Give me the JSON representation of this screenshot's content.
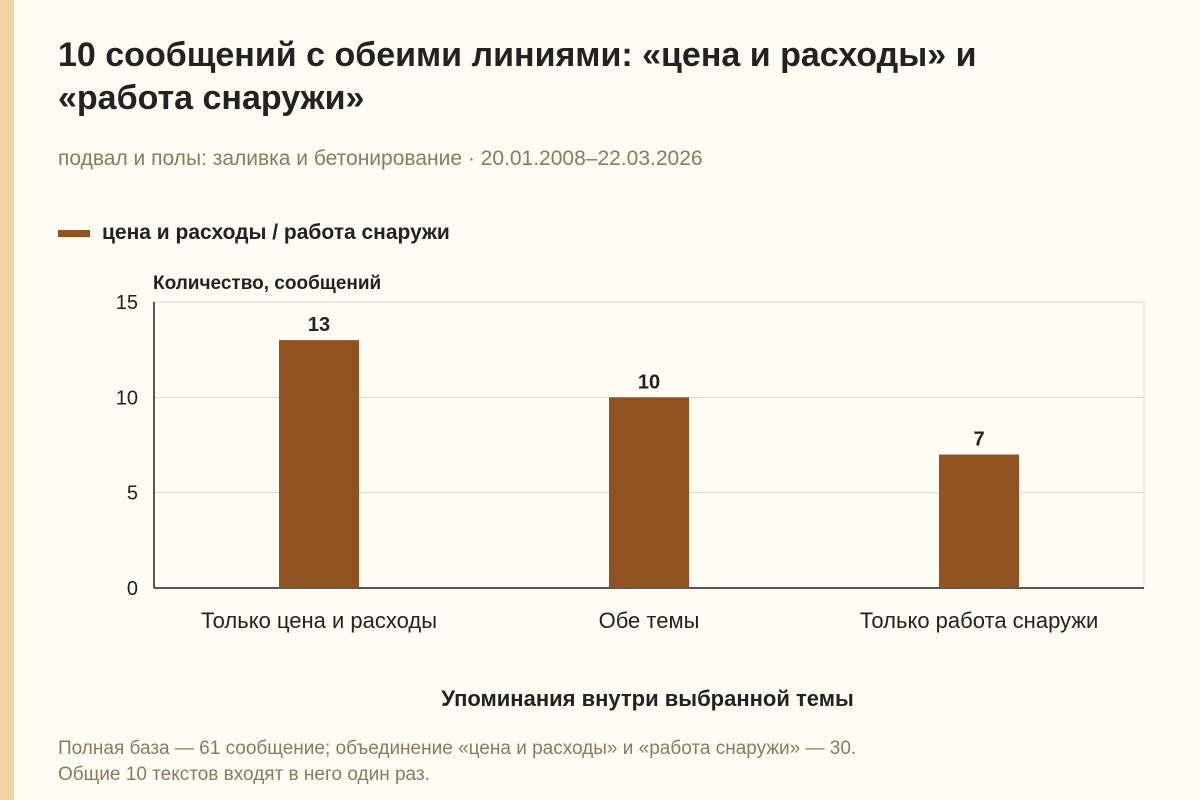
{
  "title": "10 сообщений с обеими линиями: «цена и расходы» и «работа снаружи»",
  "subtitle": "подвал и полы: заливка и бетонирование · 20.01.2008–22.03.2026",
  "legend_label": "цена и расходы / работа снаружи",
  "footnote": {
    "line1": "Полная база — 61 сообщение; объединение «цена и расходы» и «работа снаружи» — 30.",
    "line2": "Общие 10 текстов входят в него один раз."
  },
  "colors": {
    "bar": "#8f5220",
    "background": "#fffcf3",
    "accent_strip": "#f4d2a6",
    "muted_text": "#8a7a60",
    "grid": "#dcd8cc"
  },
  "chart_data": {
    "type": "bar",
    "title": "10 сообщений с обеими линиями: «цена и расходы» и «работа снаружи»",
    "subtitle": "подвал и полы: заливка и бетонирование · 20.01.2008–22.03.2026",
    "categories": [
      "Только цена и расходы",
      "Обе темы",
      "Только работа снаружи"
    ],
    "series": [
      {
        "name": "цена и расходы / работа снаружи",
        "values": [
          13,
          10,
          7
        ]
      }
    ],
    "data_labels": [
      "13",
      "10",
      "7"
    ],
    "xlabel": "Упоминания внутри выбранной темы",
    "ylabel": "Количество, сообщений",
    "ylim": [
      0,
      15
    ],
    "yticks": [
      0,
      5,
      10,
      15
    ],
    "grid": "horizontal",
    "legend": "top-left"
  }
}
